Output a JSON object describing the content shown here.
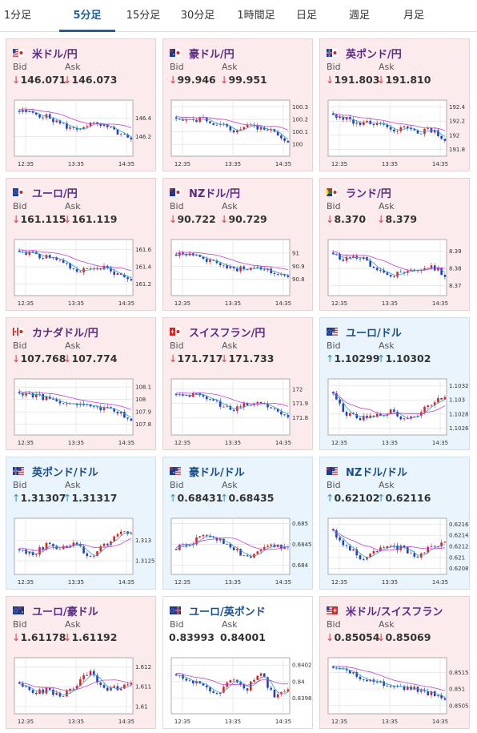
{
  "tabs": [
    {
      "label": "1分足",
      "active": false
    },
    {
      "label": "5分足",
      "active": true
    },
    {
      "label": "15分足",
      "active": false
    },
    {
      "label": "30分足",
      "active": false
    },
    {
      "label": "1時間足",
      "active": false
    },
    {
      "label": "日足",
      "active": false
    },
    {
      "label": "週足",
      "active": false
    },
    {
      "label": "月足",
      "active": false
    }
  ],
  "colors": {
    "up": "#e02020",
    "down": "#2040c8",
    "ma_fast": "#2aa3c8",
    "ma_slow": "#c040d0",
    "grid": "#dddddd"
  },
  "labels": {
    "bid": "Bid",
    "ask": "Ask"
  },
  "cards": [
    {
      "pair": "米ドル/円",
      "flag": "us-jp-flag-icon",
      "bg": "pink",
      "dir": "down",
      "bid": "146.071",
      "ask": "146.073",
      "chart": {
        "x_ticks": [
          "12:35",
          "13:35",
          "14:35"
        ],
        "y_ticks": [
          "146.4",
          "146.2"
        ],
        "ylim": [
          146.02,
          146.56
        ],
        "start": 146.42,
        "end": 146.07,
        "trend": [
          0.42,
          0.38,
          0.28,
          0.1,
          -0.05,
          0.12,
          0.05,
          -0.1,
          -0.32
        ]
      }
    },
    {
      "pair": "豪ドル/円",
      "flag": "au-jp-flag-icon",
      "bg": "pink",
      "dir": "down",
      "bid": "99.946",
      "ask": "99.951",
      "chart": {
        "x_ticks": [
          "12:35",
          "13:35",
          "14:35"
        ],
        "y_ticks": [
          "100.3",
          "100.2",
          "100.1",
          "100"
        ],
        "ylim": [
          99.93,
          100.33
        ],
        "start": 100.25,
        "end": 99.95,
        "trend": [
          0.3,
          0.2,
          0.25,
          0.1,
          -0.05,
          0.05,
          0.02,
          -0.1,
          -0.3
        ]
      }
    },
    {
      "pair": "英ポンド/円",
      "flag": "gb-jp-flag-icon",
      "bg": "pink",
      "dir": "down",
      "bid": "191.803",
      "ask": "191.810",
      "chart": {
        "x_ticks": [
          "12:35",
          "13:35",
          "14:35"
        ],
        "y_ticks": [
          "192.4",
          "192.2",
          "192",
          "191.8"
        ],
        "ylim": [
          191.75,
          192.45
        ],
        "start": 192.3,
        "end": 191.8,
        "trend": [
          0.3,
          0.25,
          0.1,
          0.15,
          -0.05,
          0.0,
          -0.1,
          -0.05,
          -0.3
        ]
      }
    },
    {
      "pair": "ユーロ/円",
      "flag": "eu-jp-flag-icon",
      "bg": "pink",
      "dir": "down",
      "bid": "161.115",
      "ask": "161.119",
      "chart": {
        "x_ticks": [
          "12:35",
          "13:35",
          "14:35"
        ],
        "y_ticks": [
          "161.6",
          "161.4",
          "161.2"
        ],
        "ylim": [
          161.1,
          161.68
        ],
        "start": 161.55,
        "end": 161.12,
        "trend": [
          0.4,
          0.35,
          0.25,
          0.15,
          -0.05,
          -0.1,
          0.0,
          -0.15,
          -0.35
        ]
      }
    },
    {
      "pair": "NZドル/円",
      "flag": "nz-jp-flag-icon",
      "bg": "pink",
      "dir": "down",
      "bid": "90.722",
      "ask": "90.729",
      "chart": {
        "x_ticks": [
          "12:35",
          "13:35",
          "14:35"
        ],
        "y_ticks": [
          "91",
          "90.9",
          "90.8"
        ],
        "ylim": [
          90.7,
          91.08
        ],
        "start": 91.0,
        "end": 90.72,
        "trend": [
          0.35,
          0.3,
          0.2,
          0.1,
          -0.05,
          0.0,
          -0.05,
          -0.1,
          -0.3
        ]
      }
    },
    {
      "pair": "ランド/円",
      "flag": "za-jp-flag-icon",
      "bg": "pink",
      "dir": "down",
      "bid": "8.370",
      "ask": "8.379",
      "chart": {
        "x_ticks": [
          "12:35",
          "13:35",
          "14:35"
        ],
        "y_ticks": [
          "8.39",
          "8.38",
          "8.37"
        ],
        "ylim": [
          8.366,
          8.395
        ],
        "start": 8.39,
        "end": 8.37,
        "trend": [
          0.3,
          0.2,
          0.25,
          0.0,
          -0.2,
          -0.1,
          -0.05,
          0.05,
          -0.2
        ]
      }
    },
    {
      "pair": "カナダドル/円",
      "flag": "ca-jp-flag-icon",
      "bg": "pink",
      "dir": "down",
      "bid": "107.768",
      "ask": "107.774",
      "chart": {
        "x_ticks": [
          "12:35",
          "13:35",
          "14:35"
        ],
        "y_ticks": [
          "108.1",
          "108",
          "107.9",
          "107.8"
        ],
        "ylim": [
          107.74,
          108.14
        ],
        "start": 108.05,
        "end": 107.77,
        "trend": [
          0.35,
          0.3,
          0.2,
          0.15,
          0.0,
          0.05,
          -0.05,
          -0.1,
          -0.35
        ]
      }
    },
    {
      "pair": "スイスフラン/円",
      "flag": "ch-jp-flag-icon",
      "bg": "pink",
      "dir": "down",
      "bid": "171.717",
      "ask": "171.733",
      "chart": {
        "x_ticks": [
          "12:35",
          "13:35",
          "14:35"
        ],
        "y_ticks": [
          "172",
          "171.9",
          "171.8"
        ],
        "ylim": [
          171.7,
          172.05
        ],
        "start": 171.98,
        "end": 171.72,
        "trend": [
          0.35,
          0.3,
          0.25,
          0.1,
          -0.1,
          0.05,
          0.1,
          -0.05,
          -0.3
        ]
      }
    },
    {
      "pair": "ユーロ/ドル",
      "flag": "eu-us-flag-icon",
      "bg": "blue",
      "dir": "up",
      "bid": "1.10299",
      "ask": "1.10302",
      "chart": {
        "x_ticks": [
          "12:35",
          "13:35",
          "14:35"
        ],
        "y_ticks": [
          "1.1032",
          "1.103",
          "1.1028",
          "1.1026"
        ],
        "ylim": [
          1.10255,
          1.10325
        ],
        "start": 1.103,
        "end": 1.103,
        "trend": [
          0.3,
          -0.2,
          -0.3,
          -0.25,
          -0.1,
          -0.3,
          -0.2,
          0.1,
          0.3
        ]
      }
    },
    {
      "pair": "英ポンド/ドル",
      "flag": "gb-us-flag-icon",
      "bg": "blue",
      "dir": "up",
      "bid": "1.31307",
      "ask": "1.31317",
      "chart": {
        "x_ticks": [
          "12:35",
          "13:35",
          "14:35"
        ],
        "y_ticks": [
          "1.313",
          "1.3125"
        ],
        "ylim": [
          1.31225,
          1.31345
        ],
        "start": 1.3128,
        "end": 1.3131,
        "trend": [
          -0.1,
          -0.2,
          0.05,
          -0.05,
          0.1,
          -0.3,
          0.0,
          0.3,
          0.35
        ]
      }
    },
    {
      "pair": "豪ドル/ドル",
      "flag": "au-us-flag-icon",
      "bg": "blue",
      "dir": "up",
      "bid": "0.68431",
      "ask": "0.68435",
      "chart": {
        "x_ticks": [
          "12:35",
          "13:35",
          "14:35"
        ],
        "y_ticks": [
          "0.685",
          "0.6845",
          "0.684"
        ],
        "ylim": [
          0.68385,
          0.68505
        ],
        "start": 0.6844,
        "end": 0.6843,
        "trend": [
          -0.05,
          0.05,
          0.3,
          0.2,
          0.0,
          -0.3,
          -0.1,
          0.05,
          -0.05
        ]
      }
    },
    {
      "pair": "NZドル/ドル",
      "flag": "nz-us-flag-icon",
      "bg": "blue",
      "dir": "up",
      "bid": "0.62102",
      "ask": "0.62116",
      "chart": {
        "x_ticks": [
          "12:35",
          "13:35",
          "14:35"
        ],
        "y_ticks": [
          "0.6216",
          "0.6214",
          "0.6212",
          "0.621",
          "0.6208"
        ],
        "ylim": [
          0.62075,
          0.62165
        ],
        "start": 0.6214,
        "end": 0.6211,
        "trend": [
          0.35,
          0.0,
          -0.3,
          -0.15,
          0.0,
          -0.05,
          -0.25,
          0.0,
          0.05
        ]
      }
    },
    {
      "pair": "ユーロ/豪ドル",
      "flag": "eu-au-flag-icon",
      "bg": "pink",
      "dir": "down",
      "bid": "1.61178",
      "ask": "1.61192",
      "chart": {
        "x_ticks": [
          "12:35",
          "13:35",
          "14:35"
        ],
        "y_ticks": [
          "1.612",
          "1.611",
          "1.61"
        ],
        "ylim": [
          1.6098,
          1.6123
        ],
        "start": 1.6112,
        "end": 1.6118,
        "trend": [
          0.05,
          -0.2,
          -0.1,
          -0.3,
          0.0,
          0.35,
          -0.1,
          -0.05,
          0.1
        ]
      }
    },
    {
      "pair": "ユーロ/英ポンド",
      "flag": "eu-gb-flag-icon",
      "bg": "white",
      "dir": "none",
      "bid": "0.83993",
      "ask": "0.84001",
      "chart": {
        "x_ticks": [
          "12:35",
          "13:35",
          "14:35"
        ],
        "y_ticks": [
          "0.8402",
          "0.84",
          "0.8398"
        ],
        "ylim": [
          0.83965,
          0.84025
        ],
        "start": 0.8401,
        "end": 0.8399,
        "trend": [
          0.3,
          0.1,
          0.0,
          -0.2,
          0.15,
          -0.1,
          0.35,
          -0.3,
          -0.1
        ]
      }
    },
    {
      "pair": "米ドル/スイスフラン",
      "flag": "us-ch-flag-icon",
      "bg": "pink",
      "dir": "down",
      "bid": "0.85054",
      "ask": "0.85069",
      "chart": {
        "x_ticks": [
          "12:35",
          "13:35",
          "14:35"
        ],
        "y_ticks": [
          "0.8515",
          "0.851",
          "0.8505"
        ],
        "ylim": [
          0.85035,
          0.85185
        ],
        "start": 0.8517,
        "end": 0.8505,
        "trend": [
          0.4,
          0.35,
          0.2,
          0.15,
          0.0,
          -0.05,
          -0.1,
          -0.2,
          -0.4
        ]
      }
    }
  ]
}
